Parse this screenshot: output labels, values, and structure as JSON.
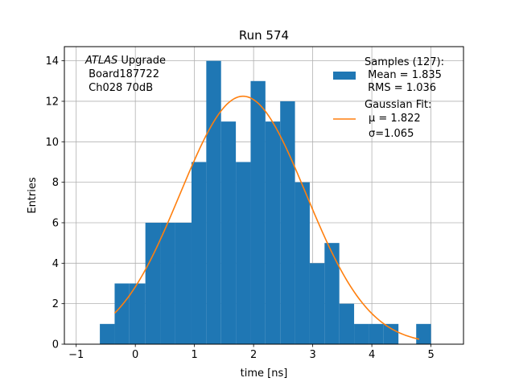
{
  "chart_data": {
    "type": "bar",
    "title": "Run 574",
    "xlabel": "time [ns]",
    "ylabel": "Entries",
    "xlim": [
      -1.2,
      5.55
    ],
    "ylim": [
      0,
      14.7
    ],
    "grid": true,
    "xticks": [
      -1,
      0,
      1,
      2,
      3,
      4,
      5
    ],
    "yticks": [
      0,
      2,
      4,
      6,
      8,
      10,
      12,
      14
    ],
    "annotation": {
      "italic": "ATLAS",
      "rest": " Upgrade",
      "line2": " Board187722",
      "line3": " Ch028 70dB"
    },
    "histogram": {
      "name": "Samples (127):",
      "color": "#1f77b4",
      "bin_edges": [
        -0.6,
        -0.35,
        -0.1,
        0.17,
        0.42,
        0.67,
        0.95,
        1.2,
        1.45,
        1.7,
        1.95,
        2.2,
        2.45,
        2.7,
        2.95,
        3.2,
        3.45,
        3.7,
        3.95,
        4.2,
        4.45,
        4.75,
        5.0
      ],
      "counts": [
        1,
        3,
        3,
        6,
        6,
        6,
        9,
        14,
        11,
        9,
        13,
        11,
        12,
        8,
        4,
        5,
        2,
        1,
        1,
        1,
        0,
        1
      ],
      "stats": [
        " Mean = 1.835",
        " RMS = 1.036"
      ]
    },
    "fit": {
      "name": "Gaussian Fit:",
      "color": "#ff7f0e",
      "mu_label": "μ = 1.822",
      "sigma_label": "σ=1.065",
      "mu": 1.822,
      "sigma": 1.065,
      "amplitude": 12.25,
      "x_range": [
        -0.35,
        4.8
      ]
    }
  }
}
